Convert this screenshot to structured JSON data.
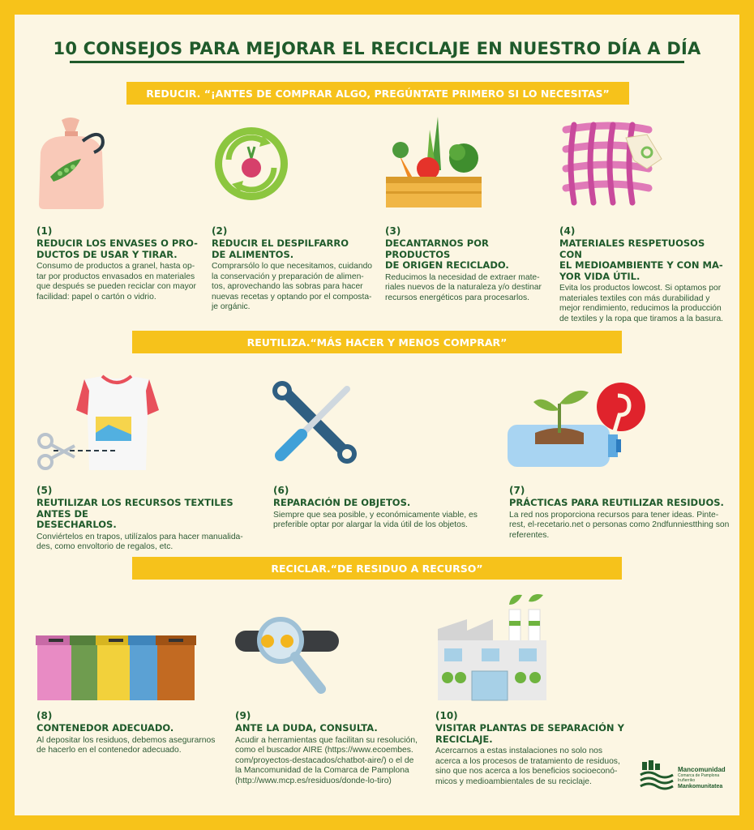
{
  "title": "10 CONSEJOS PARA MEJORAR EL RECICLAJE EN NUESTRO DÍA A DÍA",
  "sections": {
    "reducir": "REDUCIR. “¡ANTES DE COMPRAR ALGO, PREGÚNTATE PRIMERO SI LO NECESITAS”",
    "reutiliza": "REUTILIZA.“MÁS HACER Y MENOS COMPRAR”",
    "reciclar": "RECICLAR.“DE RESIDUO A RECURSO”"
  },
  "tips": [
    {
      "num": "(1)",
      "head": "REDUCIR LOS ENVASES O PRO-\nDUCTOS DE USAR Y TIRAR.",
      "body": "Consumo de productos a granel, hasta op-\ntar por productos envasados en materiales\nque después se pueden reciclar con mayor\nfacilidad: papel o cartón o vidrio.",
      "icon": "bag-icon"
    },
    {
      "num": "(2)",
      "head": "REDUCIR EL DESPILFARRO\nDE ALIMENTOS.",
      "body": "Comprarsólo lo que necesitamos, cuidando\nla conservación y preparación de alimen-\ntos, aprovechando las sobras para hacer\nnuevas recetas y optando por el composta-\nje orgánic.",
      "icon": "compost-icon"
    },
    {
      "num": "(3)",
      "head": "DECANTARNOS POR PRODUCTOS\nDE ORIGEN RECICLADO.",
      "body": "Reducimos la necesidad de extraer mate-\nriales nuevos de la naturaleza y/o destinar\nrecursos energéticos para procesarlos.",
      "icon": "vegetable-crate-icon"
    },
    {
      "num": "(4)",
      "head": "MATERIALES RESPETUOSOS CON\nEL MEDIOAMBIENTE Y CON MA-\nYOR VIDA ÚTIL.",
      "body": "Evita los productos lowcost. Si optamos por\nmateriales textiles con más durabilidad y\nmejor rendimiento, reducimos la producción\nde textiles y la ropa que tiramos a la basura.",
      "icon": "fabric-tag-icon"
    },
    {
      "num": "(5)",
      "head": "REUTILIZAR LOS RECURSOS TEXTILES ANTES DE\nDESECHARLOS.",
      "body": "Conviértelos en trapos, utilízalos para hacer manualida-\ndes, como envoltorio de regalos, etc.",
      "icon": "tshirt-scissors-icon"
    },
    {
      "num": "(6)",
      "head": "REPARACIÓN DE OBJETOS.",
      "body": "Siempre que sea posible, y económicamente viable, es\npreferible optar por alargar la vida útil de los objetos.",
      "icon": "tools-icon"
    },
    {
      "num": "(7)",
      "head": "PRÁCTICAS PARA REUTILIZAR RESIDUOS.",
      "body": "La red nos proporciona recursos para tener ideas. Pinte-\nrest, el-recetario.net o personas como 2ndfunniestthing son\nreferentes.",
      "icon": "bottle-plant-icon"
    },
    {
      "num": "(8)",
      "head": "CONTENEDOR ADECUADO.",
      "body": "Al depositar los residuos, debemos asegurarnos\nde hacerlo en el contenedor adecuado.",
      "icon": "bins-icon"
    },
    {
      "num": "(9)",
      "head": "ANTE LA DUDA, CONSULTA.",
      "body": "Acudir a herramientas que facilitan su resolución,\ncomo el buscador AIRE (https://www.ecoembes.\ncom/proyectos-destacados/chatbot-aire/) o el de\nla Mancomunidad de la Comarca de Pamplona\n(http://www.mcp.es/residuos/donde-lo-tiro)",
      "icon": "magnifier-icon"
    },
    {
      "num": "(10)",
      "head": "VISITAR PLANTAS DE SEPARACIÓN Y\nRECICLAJE.",
      "body": "Acercarnos a estas instalaciones no solo nos\nacerca a los procesos de tratamiento de residuos,\nsino que nos acerca a los beneficios socioeconó-\nmicos y medioambientales de su reciclaje.",
      "icon": "factory-icon"
    }
  ],
  "logo": {
    "line1": "Mancomunidad",
    "line2": "Comarca de Pamplona",
    "line3": "Iruñerriko",
    "line4": "Mankomunitatea"
  },
  "colors": {
    "frame": "#f7c31a",
    "panel": "#fcf6e3",
    "green": "#1f5a2b",
    "band": "#f6c21b"
  }
}
